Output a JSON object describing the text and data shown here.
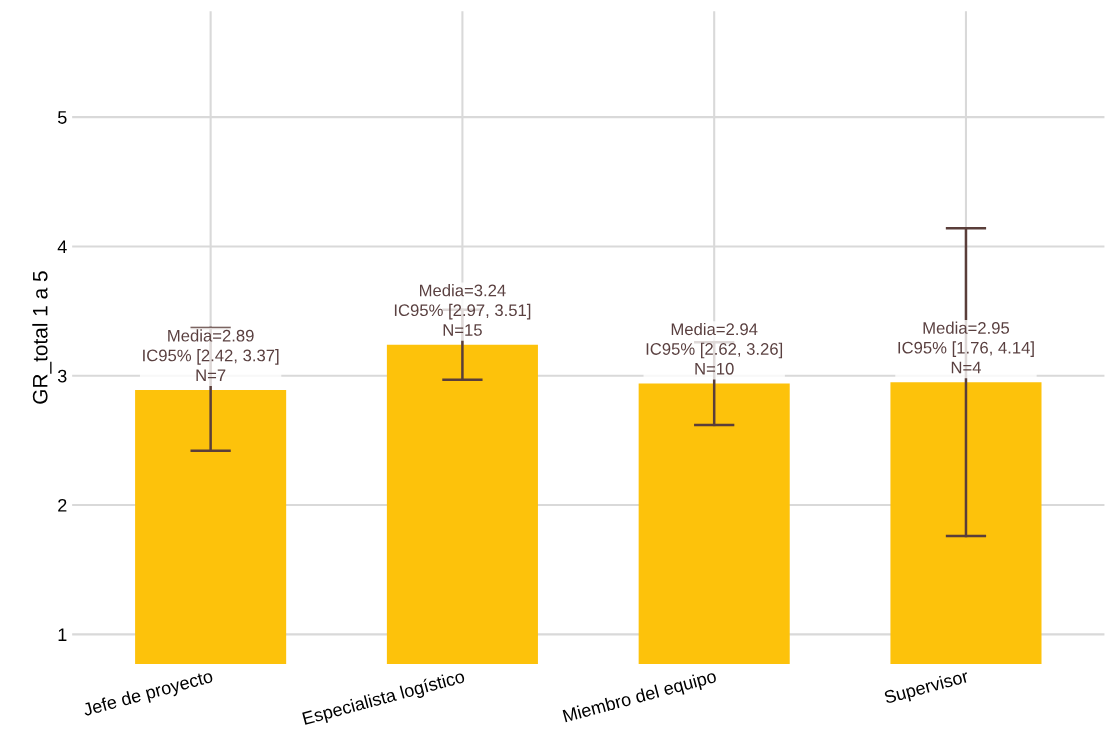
{
  "chart_data": {
    "type": "bar",
    "ylabel": "GR_total 1 a 5",
    "categories": [
      "Jefe de proyecto",
      "Especialista logístico",
      "Miembro del equipo",
      "Supervisor"
    ],
    "values": [
      2.89,
      3.24,
      2.94,
      2.95
    ],
    "errors": [
      [
        2.42,
        3.37
      ],
      [
        2.97,
        3.51
      ],
      [
        2.62,
        3.26
      ],
      [
        1.76,
        4.14
      ]
    ],
    "value_labels": [
      "Media=2.89\nIC95% [2.42, 3.37]\nN=7",
      "Media=3.24\nIC95% [2.97, 3.51]\nN=15",
      "Media=2.94\nIC95% [2.62, 3.26]\nN=10",
      "Media=2.95\nIC95% [1.76, 4.14]\nN=4"
    ],
    "color": "#fdc20b",
    "ylim": [
      0.77,
      5.82
    ],
    "yticks": [
      1,
      2,
      3,
      4,
      5
    ],
    "grid": true
  }
}
